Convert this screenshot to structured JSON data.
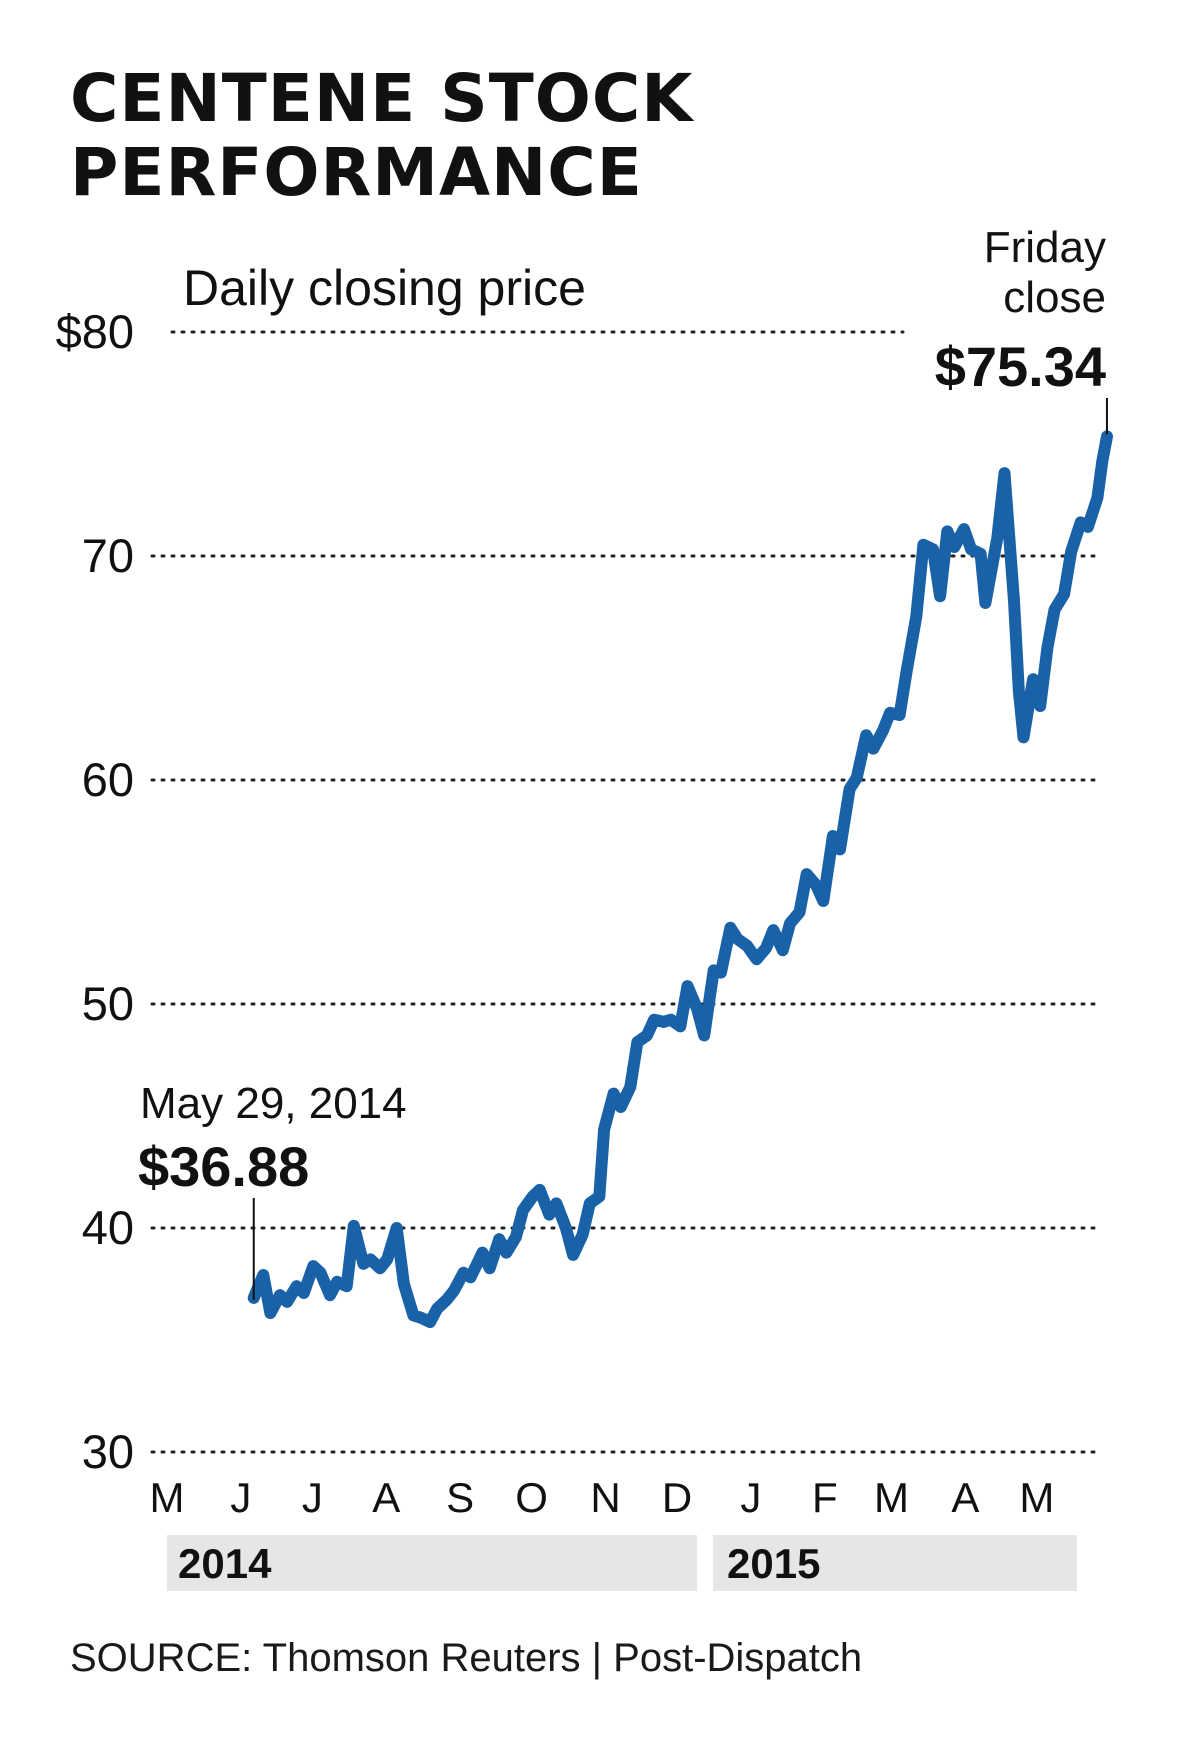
{
  "chart_data": {
    "type": "line",
    "title": "CENTENE STOCK PERFORMANCE",
    "subtitle": "Daily closing price",
    "source": "SOURCE: Thomson Reuters | Post-Dispatch",
    "series_color": "#1a62a8",
    "ylim": [
      30,
      80
    ],
    "y_ticks": [
      {
        "value": 80,
        "label": "$80"
      },
      {
        "value": 70,
        "label": "70"
      },
      {
        "value": 60,
        "label": "60"
      },
      {
        "value": 50,
        "label": "50"
      },
      {
        "value": 40,
        "label": "40"
      },
      {
        "value": 30,
        "label": "30"
      }
    ],
    "grid": "dotted horizontal",
    "x_ticks": [
      "M",
      "J",
      "J",
      "A",
      "S",
      "O",
      "N",
      "D",
      "J",
      "F",
      "M",
      "A",
      "M"
    ],
    "x_tick_months": [
      "2014-05",
      "2014-06",
      "2014-07",
      "2014-08",
      "2014-09",
      "2014-10",
      "2014-11",
      "2014-12",
      "2015-01",
      "2015-02",
      "2015-03",
      "2015-04",
      "2015-05"
    ],
    "years": [
      "2014",
      "2015"
    ],
    "annotations": [
      {
        "date": "2014-05-29",
        "label": "May 29, 2014",
        "value_label": "$36.88"
      },
      {
        "date": "2015-05-22",
        "label": "Friday close",
        "value_label": "$75.34"
      }
    ],
    "series": [
      {
        "points": [
          [
            "2014-05-29",
            36.88
          ],
          [
            "2014-06-02",
            37.9
          ],
          [
            "2014-06-05",
            36.2
          ],
          [
            "2014-06-09",
            37.0
          ],
          [
            "2014-06-12",
            36.7
          ],
          [
            "2014-06-16",
            37.4
          ],
          [
            "2014-06-19",
            37.1
          ],
          [
            "2014-06-23",
            38.3
          ],
          [
            "2014-06-26",
            38.0
          ],
          [
            "2014-06-30",
            37.0
          ],
          [
            "2014-07-03",
            37.6
          ],
          [
            "2014-07-07",
            37.4
          ],
          [
            "2014-07-10",
            40.1
          ],
          [
            "2014-07-14",
            38.4
          ],
          [
            "2014-07-17",
            38.6
          ],
          [
            "2014-07-21",
            38.2
          ],
          [
            "2014-07-24",
            38.6
          ],
          [
            "2014-07-28",
            40.0
          ],
          [
            "2014-07-31",
            37.5
          ],
          [
            "2014-08-04",
            36.1
          ],
          [
            "2014-08-07",
            36.0
          ],
          [
            "2014-08-11",
            35.8
          ],
          [
            "2014-08-14",
            36.4
          ],
          [
            "2014-08-18",
            36.8
          ],
          [
            "2014-08-21",
            37.2
          ],
          [
            "2014-08-25",
            38.0
          ],
          [
            "2014-08-28",
            37.8
          ],
          [
            "2014-09-02",
            38.9
          ],
          [
            "2014-09-05",
            38.2
          ],
          [
            "2014-09-09",
            39.5
          ],
          [
            "2014-09-12",
            38.9
          ],
          [
            "2014-09-16",
            39.6
          ],
          [
            "2014-09-19",
            40.8
          ],
          [
            "2014-09-23",
            41.4
          ],
          [
            "2014-09-26",
            41.7
          ],
          [
            "2014-09-30",
            40.6
          ],
          [
            "2014-10-03",
            41.1
          ],
          [
            "2014-10-07",
            40.0
          ],
          [
            "2014-10-10",
            38.8
          ],
          [
            "2014-10-14",
            39.7
          ],
          [
            "2014-10-17",
            41.1
          ],
          [
            "2014-10-21",
            41.4
          ],
          [
            "2014-10-23",
            44.4
          ],
          [
            "2014-10-27",
            46.0
          ],
          [
            "2014-10-30",
            45.4
          ],
          [
            "2014-11-03",
            46.3
          ],
          [
            "2014-11-06",
            48.3
          ],
          [
            "2014-11-10",
            48.6
          ],
          [
            "2014-11-13",
            49.3
          ],
          [
            "2014-11-17",
            49.2
          ],
          [
            "2014-11-20",
            49.3
          ],
          [
            "2014-11-24",
            49.0
          ],
          [
            "2014-11-27",
            50.8
          ],
          [
            "2014-12-01",
            49.8
          ],
          [
            "2014-12-04",
            48.6
          ],
          [
            "2014-12-08",
            51.5
          ],
          [
            "2014-12-11",
            51.4
          ],
          [
            "2014-12-15",
            53.4
          ],
          [
            "2014-12-18",
            52.9
          ],
          [
            "2014-12-22",
            52.6
          ],
          [
            "2014-12-26",
            52.0
          ],
          [
            "2014-12-30",
            52.5
          ],
          [
            "2015-01-02",
            53.3
          ],
          [
            "2015-01-06",
            52.4
          ],
          [
            "2015-01-09",
            53.6
          ],
          [
            "2015-01-13",
            54.1
          ],
          [
            "2015-01-16",
            55.8
          ],
          [
            "2015-01-20",
            55.3
          ],
          [
            "2015-01-23",
            54.6
          ],
          [
            "2015-01-27",
            57.5
          ],
          [
            "2015-01-30",
            56.9
          ],
          [
            "2015-02-03",
            59.6
          ],
          [
            "2015-02-06",
            60.1
          ],
          [
            "2015-02-10",
            62.0
          ],
          [
            "2015-02-13",
            61.4
          ],
          [
            "2015-02-17",
            62.2
          ],
          [
            "2015-02-20",
            63.0
          ],
          [
            "2015-02-24",
            62.9
          ],
          [
            "2015-02-27",
            64.9
          ],
          [
            "2015-03-03",
            67.3
          ],
          [
            "2015-03-06",
            70.5
          ],
          [
            "2015-03-10",
            70.3
          ],
          [
            "2015-03-13",
            68.2
          ],
          [
            "2015-03-16",
            71.1
          ],
          [
            "2015-03-19",
            70.4
          ],
          [
            "2015-03-23",
            71.2
          ],
          [
            "2015-03-26",
            70.3
          ],
          [
            "2015-03-30",
            70.1
          ],
          [
            "2015-04-01",
            67.9
          ],
          [
            "2015-04-06",
            70.8
          ],
          [
            "2015-04-09",
            73.7
          ],
          [
            "2015-04-13",
            68.0
          ],
          [
            "2015-04-15",
            64.0
          ],
          [
            "2015-04-17",
            61.9
          ],
          [
            "2015-04-21",
            64.5
          ],
          [
            "2015-04-24",
            63.3
          ],
          [
            "2015-04-27",
            65.9
          ],
          [
            "2015-04-30",
            67.6
          ],
          [
            "2015-05-04",
            68.3
          ],
          [
            "2015-05-07",
            70.2
          ],
          [
            "2015-05-11",
            71.5
          ],
          [
            "2015-05-14",
            71.3
          ],
          [
            "2015-05-18",
            72.6
          ],
          [
            "2015-05-20",
            74.2
          ],
          [
            "2015-05-22",
            75.34
          ]
        ]
      }
    ]
  }
}
